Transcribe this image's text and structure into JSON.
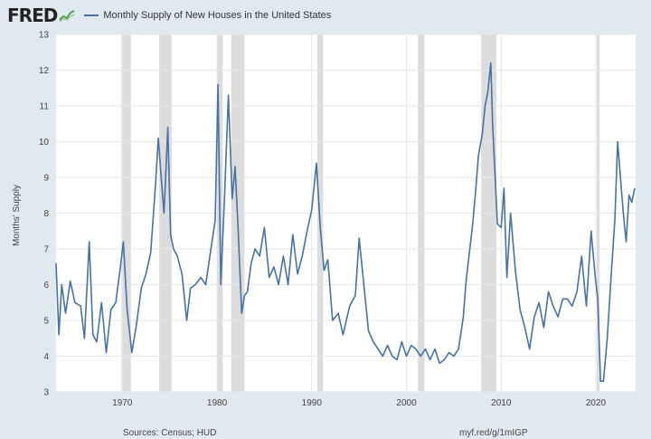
{
  "header": {
    "logo_text": "FRED",
    "legend_label": "Monthly Supply of New Houses in the United States"
  },
  "footer": {
    "sources": "Sources: Census; HUD",
    "short_link": "myf.red/g/1mIGP"
  },
  "chart_data": {
    "type": "line",
    "title": "Monthly Supply of New Houses in the United States",
    "ylabel": "Months' Supply",
    "xlabel": "",
    "ylim": [
      3,
      13
    ],
    "xlim": [
      1963.0,
      2024.2
    ],
    "y_ticks": [
      3,
      4,
      5,
      6,
      7,
      8,
      9,
      10,
      11,
      12,
      13
    ],
    "x_ticks": [
      1970,
      1980,
      1990,
      2000,
      2010,
      2020
    ],
    "line_color": "#4572a7",
    "recessions": [
      [
        1969.9,
        1970.9
      ],
      [
        1973.9,
        1975.2
      ],
      [
        1980.0,
        1980.6
      ],
      [
        1981.5,
        1982.9
      ],
      [
        1990.6,
        1991.2
      ],
      [
        2001.2,
        2001.9
      ],
      [
        2007.9,
        2009.5
      ],
      [
        2020.1,
        2020.4
      ]
    ],
    "series": [
      {
        "name": "Monthly Supply of New Houses in the United States",
        "x": [
          1963.0,
          1963.3,
          1963.6,
          1964.0,
          1964.5,
          1965.0,
          1965.6,
          1966.0,
          1966.5,
          1966.9,
          1967.3,
          1967.8,
          1968.3,
          1968.8,
          1969.3,
          1969.8,
          1970.1,
          1970.5,
          1971.0,
          1971.5,
          1972.0,
          1972.5,
          1973.0,
          1973.5,
          1973.8,
          1974.1,
          1974.4,
          1974.8,
          1975.1,
          1975.4,
          1975.8,
          1976.3,
          1976.8,
          1977.2,
          1977.7,
          1978.3,
          1978.8,
          1979.3,
          1979.8,
          1980.1,
          1980.4,
          1980.8,
          1981.2,
          1981.6,
          1981.9,
          1982.2,
          1982.6,
          1982.9,
          1983.2,
          1983.6,
          1984.0,
          1984.5,
          1985.0,
          1985.5,
          1986.0,
          1986.5,
          1987.0,
          1987.5,
          1988.0,
          1988.5,
          1989.0,
          1989.5,
          1990.0,
          1990.5,
          1990.9,
          1991.3,
          1991.7,
          1992.2,
          1992.8,
          1993.3,
          1994.0,
          1994.6,
          1995.0,
          1995.5,
          1996.0,
          1996.5,
          1997.0,
          1997.5,
          1998.0,
          1998.5,
          1999.0,
          1999.5,
          2000.0,
          2000.5,
          2001.0,
          2001.5,
          2002.0,
          2002.5,
          2003.0,
          2003.5,
          2004.0,
          2004.5,
          2005.0,
          2005.5,
          2006.0,
          2006.3,
          2006.6,
          2007.0,
          2007.3,
          2007.6,
          2008.0,
          2008.3,
          2008.6,
          2008.9,
          2009.1,
          2009.3,
          2009.6,
          2010.0,
          2010.3,
          2010.6,
          2011.0,
          2011.5,
          2012.0,
          2012.5,
          2013.0,
          2013.5,
          2014.0,
          2014.5,
          2015.0,
          2015.5,
          2016.0,
          2016.5,
          2017.0,
          2017.5,
          2018.0,
          2018.5,
          2019.0,
          2019.5,
          2019.9,
          2020.2,
          2020.5,
          2020.8,
          2021.2,
          2021.6,
          2022.0,
          2022.3,
          2022.6,
          2022.9,
          2023.2,
          2023.5,
          2023.8,
          2024.1
        ],
        "values": [
          6.6,
          4.6,
          6.0,
          5.2,
          6.1,
          5.5,
          5.4,
          4.5,
          7.2,
          4.6,
          4.4,
          5.5,
          4.1,
          5.3,
          5.5,
          6.5,
          7.2,
          5.3,
          4.1,
          4.9,
          5.9,
          6.3,
          6.9,
          8.8,
          10.1,
          9.0,
          8.0,
          10.4,
          7.4,
          7.0,
          6.8,
          6.3,
          5.0,
          5.9,
          6.0,
          6.2,
          6.0,
          6.9,
          7.8,
          11.6,
          6.0,
          8.5,
          11.3,
          8.4,
          9.3,
          7.7,
          5.2,
          5.7,
          5.8,
          6.6,
          7.0,
          6.8,
          7.6,
          6.2,
          6.5,
          6.0,
          6.8,
          6.0,
          7.4,
          6.3,
          6.8,
          7.5,
          8.1,
          9.4,
          7.6,
          6.4,
          6.7,
          5.0,
          5.2,
          4.6,
          5.4,
          5.7,
          7.3,
          6.0,
          4.7,
          4.4,
          4.2,
          4.0,
          4.3,
          4.0,
          3.9,
          4.4,
          4.0,
          4.3,
          4.2,
          4.0,
          4.2,
          3.9,
          4.2,
          3.8,
          3.9,
          4.1,
          4.0,
          4.2,
          5.1,
          6.1,
          6.8,
          7.7,
          8.6,
          9.6,
          10.2,
          11.0,
          11.4,
          12.2,
          10.5,
          9.4,
          7.7,
          7.6,
          8.7,
          6.2,
          8.0,
          6.4,
          5.3,
          4.8,
          4.2,
          5.1,
          5.5,
          4.8,
          5.8,
          5.4,
          5.1,
          5.6,
          5.6,
          5.4,
          5.8,
          6.8,
          5.4,
          7.5,
          6.3,
          5.6,
          3.3,
          3.3,
          4.5,
          6.2,
          7.8,
          10.0,
          9.0,
          8.0,
          7.2,
          8.5,
          8.3,
          8.7
        ]
      }
    ]
  }
}
